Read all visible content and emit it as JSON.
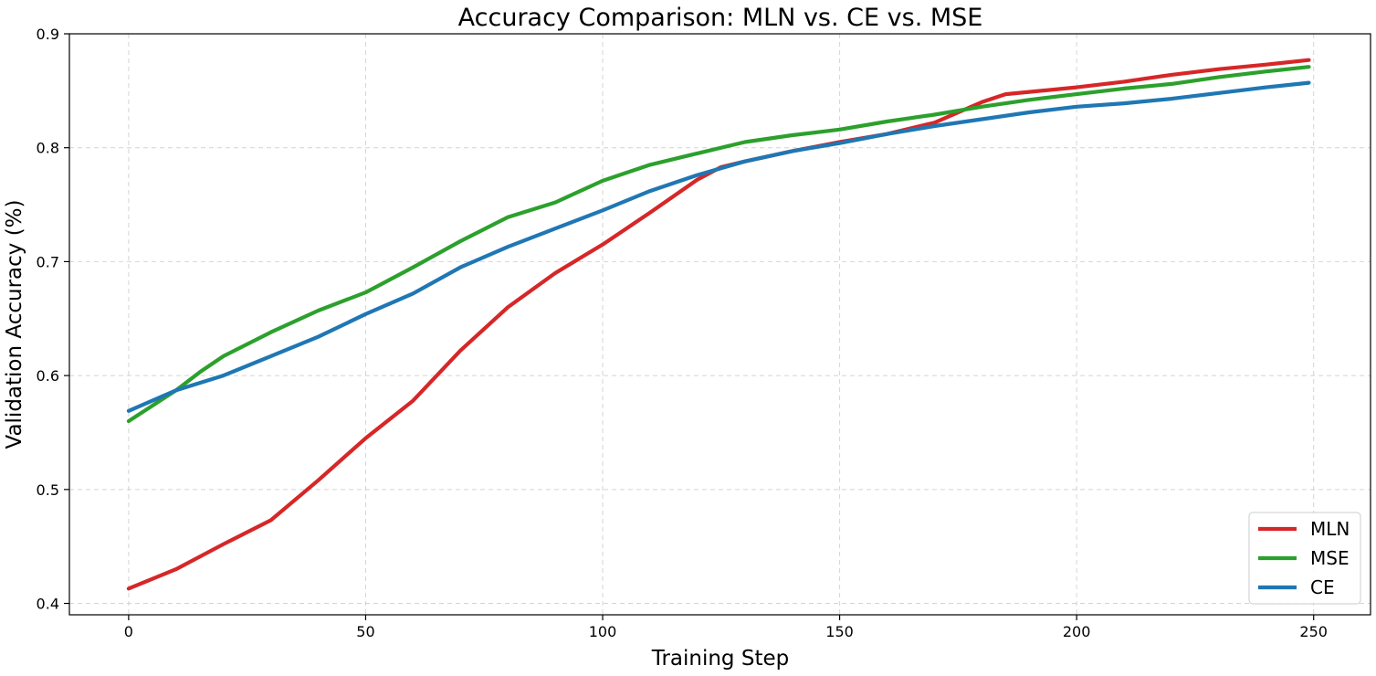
{
  "chart_data": {
    "type": "line",
    "title": "Accuracy Comparison: MLN vs. CE vs. MSE",
    "xlabel": "Training Step",
    "ylabel": "Validation Accuracy (%)",
    "xlim": [
      -12.5,
      262
    ],
    "ylim": [
      0.39,
      0.9
    ],
    "xticks": [
      0,
      50,
      100,
      150,
      200,
      250
    ],
    "yticks": [
      0.4,
      0.5,
      0.6,
      0.7,
      0.8,
      0.9
    ],
    "xtick_labels": [
      "0",
      "50",
      "100",
      "150",
      "200",
      "250"
    ],
    "ytick_labels": [
      "0.4",
      "0.5",
      "0.6",
      "0.7",
      "0.8",
      "0.9"
    ],
    "grid": true,
    "legend_position": "lower-right",
    "series": [
      {
        "name": "MLN",
        "color": "#d62728",
        "x": [
          0,
          10,
          20,
          30,
          40,
          50,
          60,
          70,
          80,
          90,
          100,
          110,
          120,
          125,
          130,
          140,
          150,
          160,
          170,
          180,
          185,
          190,
          200,
          210,
          220,
          230,
          240,
          249
        ],
        "y": [
          0.413,
          0.43,
          0.452,
          0.473,
          0.508,
          0.545,
          0.578,
          0.622,
          0.66,
          0.69,
          0.715,
          0.743,
          0.772,
          0.783,
          0.788,
          0.797,
          0.805,
          0.812,
          0.822,
          0.84,
          0.847,
          0.849,
          0.853,
          0.858,
          0.864,
          0.869,
          0.873,
          0.877
        ]
      },
      {
        "name": "MSE",
        "color": "#2ca02c",
        "x": [
          0,
          10,
          15,
          20,
          30,
          40,
          50,
          60,
          70,
          80,
          90,
          100,
          110,
          120,
          130,
          140,
          150,
          160,
          170,
          180,
          190,
          200,
          210,
          220,
          230,
          240,
          249
        ],
        "y": [
          0.56,
          0.587,
          0.603,
          0.617,
          0.638,
          0.657,
          0.673,
          0.695,
          0.718,
          0.739,
          0.752,
          0.771,
          0.785,
          0.795,
          0.805,
          0.811,
          0.816,
          0.823,
          0.829,
          0.836,
          0.842,
          0.847,
          0.852,
          0.856,
          0.862,
          0.867,
          0.871
        ]
      },
      {
        "name": "CE",
        "color": "#1f77b4",
        "x": [
          0,
          10,
          20,
          30,
          40,
          50,
          60,
          70,
          80,
          90,
          100,
          110,
          120,
          130,
          140,
          150,
          160,
          170,
          180,
          190,
          200,
          210,
          220,
          230,
          240,
          249
        ],
        "y": [
          0.569,
          0.587,
          0.6,
          0.617,
          0.634,
          0.654,
          0.672,
          0.695,
          0.713,
          0.729,
          0.745,
          0.762,
          0.776,
          0.788,
          0.797,
          0.804,
          0.812,
          0.819,
          0.825,
          0.831,
          0.836,
          0.839,
          0.843,
          0.848,
          0.853,
          0.857
        ]
      }
    ]
  }
}
